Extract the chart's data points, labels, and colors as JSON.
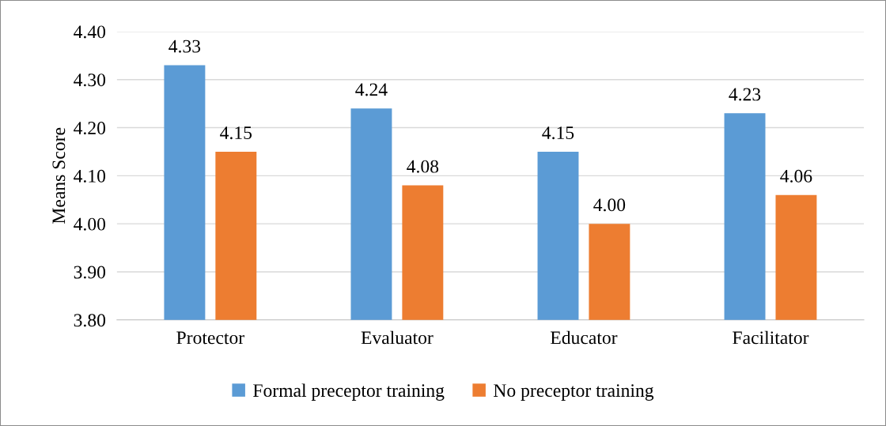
{
  "chart_data": {
    "type": "bar",
    "ylabel": "Means Score",
    "categories": [
      "Protector",
      "Evaluator",
      "Educator",
      "Facilitator"
    ],
    "series": [
      {
        "name": "Formal preceptor training",
        "color": "#5b9bd5",
        "values": [
          4.33,
          4.24,
          4.15,
          4.23
        ],
        "value_labels": [
          "4.33",
          "4.24",
          "4.15",
          "4.23"
        ]
      },
      {
        "name": "No preceptor training",
        "color": "#ed7d31",
        "values": [
          4.15,
          4.08,
          4.0,
          4.06
        ],
        "value_labels": [
          "4.15",
          "4.08",
          "4.00",
          "4.06"
        ]
      }
    ],
    "ylim": [
      3.8,
      4.4
    ],
    "yticks": [
      {
        "value": 3.8,
        "label": "3.80"
      },
      {
        "value": 3.9,
        "label": "3.90"
      },
      {
        "value": 4.0,
        "label": "4.00"
      },
      {
        "value": 4.1,
        "label": "4.10"
      },
      {
        "value": 4.2,
        "label": "4.20"
      },
      {
        "value": 4.3,
        "label": "4.30"
      },
      {
        "value": 4.4,
        "label": "4.40"
      }
    ],
    "grid": "y",
    "legend": "bottom"
  }
}
